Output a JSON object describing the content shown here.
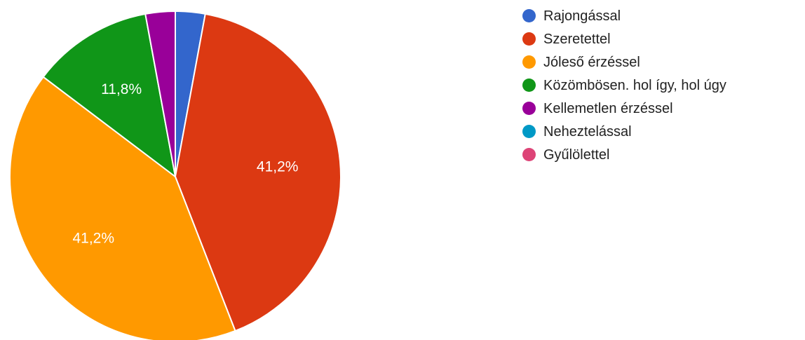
{
  "chart_data": {
    "type": "pie",
    "categories": [
      "Rajongással",
      "Szeretettel",
      "Jóleső érzéssel",
      "Közömbösen. hol így, hol úgy",
      "Kellemetlen érzéssel",
      "Neheztelással",
      "Gyűlölettel"
    ],
    "values": [
      2.9,
      41.2,
      41.2,
      11.8,
      2.9,
      0,
      0
    ],
    "colors": [
      "#3366cc",
      "#dc3912",
      "#ff9900",
      "#109618",
      "#990099",
      "#0099c6",
      "#dd4477"
    ],
    "slice_labels": [
      "",
      "41,2%",
      "41,2%",
      "11,8%",
      "",
      "",
      ""
    ],
    "legend_position": "right",
    "start_angle_deg": 90,
    "direction": "clockwise"
  }
}
